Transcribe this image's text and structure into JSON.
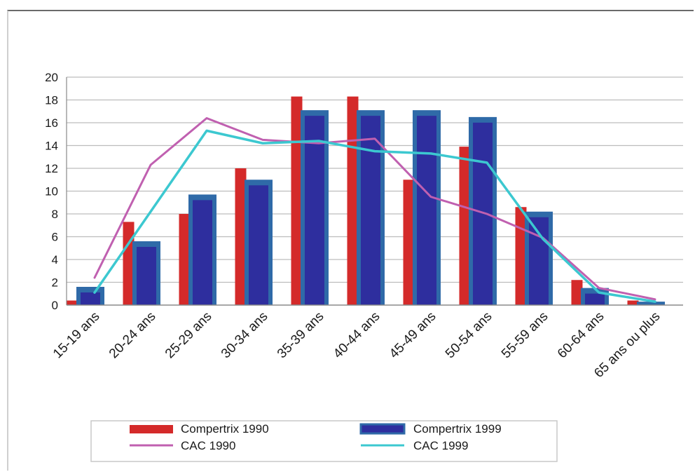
{
  "chart_data": {
    "type": "bar",
    "categories": [
      "15-19 ans",
      "20-24 ans",
      "25-29 ans",
      "30-34 ans",
      "35-39 ans",
      "40-44 ans",
      "45-49 ans",
      "50-54 ans",
      "55-59 ans",
      "60-64 ans",
      "65 ans ou plus"
    ],
    "ylim": [
      0,
      20
    ],
    "yticks": [
      0,
      2,
      4,
      6,
      8,
      10,
      12,
      14,
      16,
      18,
      20
    ],
    "grid": true,
    "legend_position": "bottom",
    "bar_series": [
      {
        "name": "Compertrix 1990",
        "color": "#d42a2a",
        "values": [
          0.4,
          7.3,
          8.0,
          12.0,
          18.3,
          18.3,
          11.0,
          13.9,
          8.6,
          2.2,
          0.4
        ]
      },
      {
        "name": "Compertrix 1999",
        "color": "#2e2e9e",
        "edge": "#2f6aa8",
        "values": [
          1.6,
          5.6,
          9.7,
          11.0,
          17.1,
          17.1,
          17.1,
          16.5,
          8.2,
          1.5,
          0.3
        ]
      }
    ],
    "line_series": [
      {
        "name": "CAC 1990",
        "color": "#c060b0",
        "values": [
          2.4,
          12.3,
          16.4,
          14.5,
          14.2,
          14.6,
          9.5,
          8.0,
          5.9,
          1.5,
          0.5
        ]
      },
      {
        "name": "CAC 1999",
        "color": "#3cc8d0",
        "values": [
          1.1,
          8.2,
          15.3,
          14.2,
          14.4,
          13.5,
          13.3,
          12.5,
          5.8,
          1.1,
          0.3
        ]
      }
    ]
  }
}
